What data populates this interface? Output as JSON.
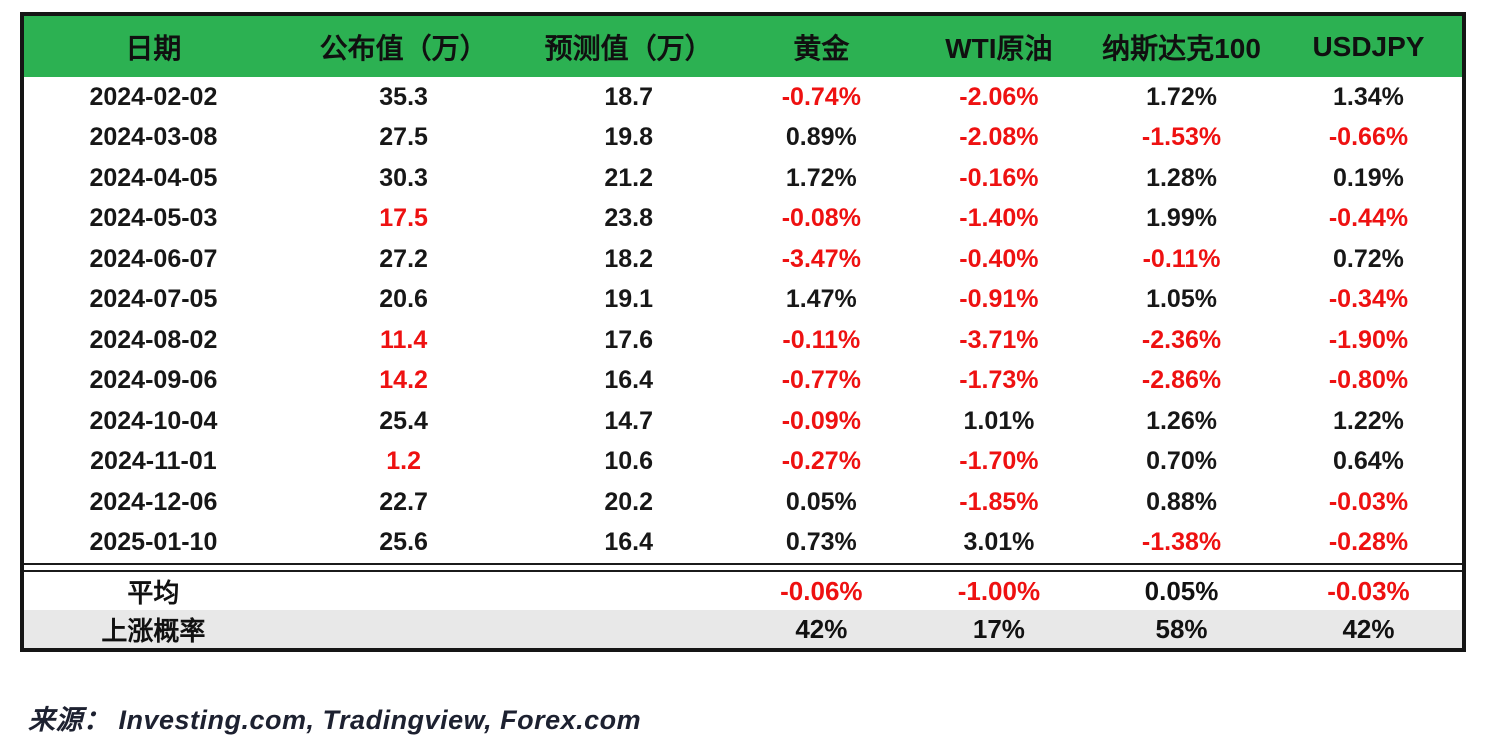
{
  "chart_data": {
    "type": "table",
    "columns": [
      "日期",
      "公布值（万）",
      "预测值（万）",
      "黄金",
      "WTI原油",
      "纳斯达克100",
      "USDJPY"
    ],
    "rows": [
      [
        "2024-02-02",
        "35.3",
        "18.7",
        "-0.74%",
        "-2.06%",
        "1.72%",
        "1.34%"
      ],
      [
        "2024-03-08",
        "27.5",
        "19.8",
        "0.89%",
        "-2.08%",
        "-1.53%",
        "-0.66%"
      ],
      [
        "2024-04-05",
        "30.3",
        "21.2",
        "1.72%",
        "-0.16%",
        "1.28%",
        "0.19%"
      ],
      [
        "2024-05-03",
        "17.5",
        "23.8",
        "-0.08%",
        "-1.40%",
        "1.99%",
        "-0.44%"
      ],
      [
        "2024-06-07",
        "27.2",
        "18.2",
        "-3.47%",
        "-0.40%",
        "-0.11%",
        "0.72%"
      ],
      [
        "2024-07-05",
        "20.6",
        "19.1",
        "1.47%",
        "-0.91%",
        "1.05%",
        "-0.34%"
      ],
      [
        "2024-08-02",
        "11.4",
        "17.6",
        "-0.11%",
        "-3.71%",
        "-2.36%",
        "-1.90%"
      ],
      [
        "2024-09-06",
        "14.2",
        "16.4",
        "-0.77%",
        "-1.73%",
        "-2.86%",
        "-0.80%"
      ],
      [
        "2024-10-04",
        "25.4",
        "14.7",
        "-0.09%",
        "1.01%",
        "1.26%",
        "1.22%"
      ],
      [
        "2024-11-01",
        "1.2",
        "10.6",
        "-0.27%",
        "-1.70%",
        "0.70%",
        "0.64%"
      ],
      [
        "2024-12-06",
        "22.7",
        "20.2",
        "0.05%",
        "-1.85%",
        "0.88%",
        "-0.03%"
      ],
      [
        "2025-01-10",
        "25.6",
        "16.4",
        "0.73%",
        "3.01%",
        "-1.38%",
        "-0.28%"
      ]
    ],
    "summary_rows": [
      {
        "name": "average",
        "cells": [
          "平均",
          "",
          "",
          "-0.06%",
          "-1.00%",
          "0.05%",
          "-0.03%"
        ]
      },
      {
        "name": "up-probability",
        "cells": [
          "上涨概率",
          "",
          "",
          "42%",
          "17%",
          "58%",
          "42%"
        ]
      }
    ],
    "title": "",
    "legend_position": "none",
    "grid": false
  },
  "footer": {
    "source": "来源： Investing.com, Tradingview, Forex.com"
  },
  "colors": {
    "header_bg": "#2cb152",
    "negative_red": "#ee1111",
    "probability_row_bg": "#e8e8e8",
    "border_black": "#151515",
    "text_black": "#171717"
  }
}
